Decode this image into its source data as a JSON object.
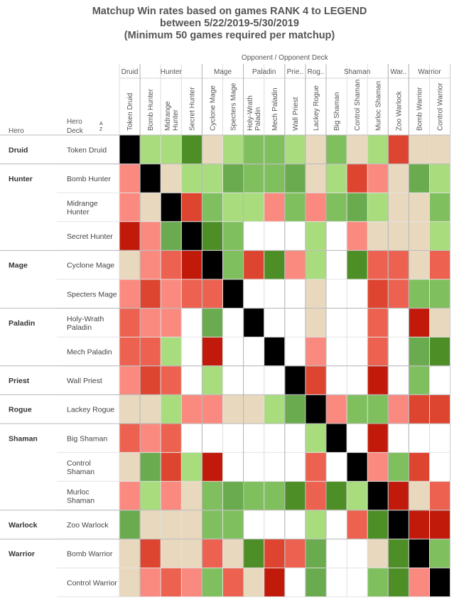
{
  "title_lines": [
    "Matchup Win rates based on games RANK 4 to LEGEND",
    "between 5/22/2019-5/30/2019",
    "(Minimum 50 games required per matchup)"
  ],
  "headers": {
    "opponent_label": "Opponent  /  Opponent Deck",
    "hero_col": "Hero",
    "deck_col_line1": "Hero",
    "deck_col_line2": "Deck"
  },
  "sort_icon": "sort-ascending-icon",
  "palette": {
    "B": "#000000",
    "T": "#e8d9be",
    "DG": "#4d8f26",
    "MG": "#6aab4f",
    "G": "#80bf5e",
    "LG": "#a8dc7d",
    "DR": "#c11a0a",
    "R": "#de4530",
    "MR": "#ec6150",
    "LR": "#fa8a7f",
    "W": "#ffffff"
  },
  "opponent_classes": [
    {
      "label": "Druid",
      "span": 1
    },
    {
      "label": "Hunter",
      "span": 3
    },
    {
      "label": "Mage",
      "span": 2
    },
    {
      "label": "Paladin",
      "span": 2
    },
    {
      "label": "Prie..",
      "span": 1
    },
    {
      "label": "Rog..",
      "span": 1
    },
    {
      "label": "Shaman",
      "span": 3
    },
    {
      "label": "War..",
      "span": 1
    },
    {
      "label": "Warrior",
      "span": 2
    }
  ],
  "opponent_decks": [
    "Token Druid",
    "Bomb Hunter",
    "Midrange Hunter",
    "Secret Hunter",
    "Cyclone Mage",
    "Specters Mage",
    "Holy-Wrath Paladin",
    "Mech Paladin",
    "Wall Priest",
    "Lackey Rogue",
    "Big Shaman",
    "Control Shaman",
    "Murloc Shaman",
    "Zoo Warlock",
    "Bomb Warrior",
    "Control Warrior"
  ],
  "hero_groups": [
    {
      "hero": "Druid",
      "decks": [
        "Token Druid"
      ]
    },
    {
      "hero": "Hunter",
      "decks": [
        "Bomb Hunter",
        "Midrange Hunter",
        "Secret Hunter"
      ]
    },
    {
      "hero": "Mage",
      "decks": [
        "Cyclone Mage",
        "Specters Mage"
      ]
    },
    {
      "hero": "Paladin",
      "decks": [
        "Holy-Wrath Paladin",
        "Mech Paladin"
      ]
    },
    {
      "hero": "Priest",
      "decks": [
        "Wall Priest"
      ]
    },
    {
      "hero": "Rogue",
      "decks": [
        "Lackey Rogue"
      ]
    },
    {
      "hero": "Shaman",
      "decks": [
        "Big Shaman",
        "Control Shaman",
        "Murloc Shaman"
      ]
    },
    {
      "hero": "Warlock",
      "decks": [
        "Zoo Warlock"
      ]
    },
    {
      "hero": "Warrior",
      "decks": [
        "Bomb Warrior",
        "Control Warrior"
      ]
    }
  ],
  "chart_data": {
    "type": "heatmap",
    "title": "Matchup Win rates based on games RANK 4 to LEGEND between 5/22/2019-5/30/2019 (Minimum 50 games required per matchup)",
    "xlabel": "Opponent / Opponent Deck",
    "ylabel": "Hero / Hero Deck",
    "x_categories": [
      "Token Druid",
      "Bomb Hunter",
      "Midrange Hunter",
      "Secret Hunter",
      "Cyclone Mage",
      "Specters Mage",
      "Holy-Wrath Paladin",
      "Mech Paladin",
      "Wall Priest",
      "Lackey Rogue",
      "Big Shaman",
      "Control Shaman",
      "Murloc Shaman",
      "Zoo Warlock",
      "Bomb Warrior",
      "Control Warrior"
    ],
    "y_categories": [
      "Token Druid",
      "Bomb Hunter",
      "Midrange Hunter",
      "Secret Hunter",
      "Cyclone Mage",
      "Specters Mage",
      "Holy-Wrath Paladin",
      "Mech Paladin",
      "Wall Priest",
      "Lackey Rogue",
      "Big Shaman",
      "Control Shaman",
      "Murloc Shaman",
      "Zoo Warlock",
      "Bomb Warrior",
      "Control Warrior"
    ],
    "cell_colors": [
      [
        "B",
        "LG",
        "LG",
        "DG",
        "T",
        "LG",
        "G",
        "G",
        "LG",
        "T",
        "G",
        "T",
        "LG",
        "R",
        "T",
        "T"
      ],
      [
        "LR",
        "B",
        "T",
        "LG",
        "LG",
        "MG",
        "G",
        "G",
        "MG",
        "T",
        "LG",
        "R",
        "LR",
        "T",
        "MG",
        "LG"
      ],
      [
        "LR",
        "T",
        "B",
        "R",
        "G",
        "LG",
        "LG",
        "LR",
        "G",
        "LR",
        "G",
        "MG",
        "LG",
        "T",
        "T",
        "G"
      ],
      [
        "DR",
        "LR",
        "MG",
        "B",
        "DG",
        "G",
        "W",
        "W",
        "W",
        "LG",
        "W",
        "LR",
        "T",
        "T",
        "T",
        "LG"
      ],
      [
        "T",
        "LR",
        "MR",
        "DR",
        "B",
        "G",
        "R",
        "DG",
        "LR",
        "LG",
        "W",
        "DG",
        "MR",
        "MR",
        "T",
        "MR"
      ],
      [
        "LR",
        "R",
        "LR",
        "MR",
        "MR",
        "B",
        "W",
        "W",
        "W",
        "T",
        "W",
        "W",
        "R",
        "MR",
        "G",
        "G"
      ],
      [
        "MR",
        "LR",
        "LR",
        "W",
        "MG",
        "W",
        "B",
        "W",
        "W",
        "T",
        "W",
        "W",
        "MR",
        "W",
        "DR",
        "T"
      ],
      [
        "MR",
        "MR",
        "LG",
        "W",
        "DR",
        "W",
        "W",
        "B",
        "W",
        "LR",
        "W",
        "W",
        "MR",
        "W",
        "MG",
        "DG"
      ],
      [
        "LR",
        "R",
        "MR",
        "W",
        "LG",
        "W",
        "W",
        "W",
        "B",
        "R",
        "W",
        "W",
        "DR",
        "W",
        "G",
        "W"
      ],
      [
        "T",
        "T",
        "LG",
        "LR",
        "LR",
        "T",
        "T",
        "LG",
        "MG",
        "B",
        "LR",
        "G",
        "G",
        "LR",
        "R",
        "R"
      ],
      [
        "MR",
        "LR",
        "MR",
        "W",
        "W",
        "W",
        "W",
        "W",
        "W",
        "LG",
        "B",
        "W",
        "DR",
        "W",
        "W",
        "W"
      ],
      [
        "T",
        "MG",
        "R",
        "LG",
        "DR",
        "W",
        "W",
        "W",
        "W",
        "MR",
        "W",
        "B",
        "LR",
        "G",
        "R",
        "W"
      ],
      [
        "LR",
        "LG",
        "LR",
        "T",
        "G",
        "MG",
        "G",
        "G",
        "DG",
        "MR",
        "DG",
        "LG",
        "B",
        "DR",
        "T",
        "MR"
      ],
      [
        "MG",
        "T",
        "T",
        "T",
        "G",
        "G",
        "W",
        "W",
        "W",
        "LG",
        "W",
        "MR",
        "DG",
        "B",
        "DR",
        "DR"
      ],
      [
        "T",
        "R",
        "T",
        "T",
        "MR",
        "T",
        "DG",
        "R",
        "MR",
        "MG",
        "W",
        "W",
        "T",
        "DG",
        "B",
        "G"
      ],
      [
        "T",
        "LR",
        "MR",
        "LR",
        "G",
        "MR",
        "T",
        "DR",
        "W",
        "MG",
        "W",
        "W",
        "G",
        "DG",
        "LR",
        "B"
      ]
    ]
  }
}
